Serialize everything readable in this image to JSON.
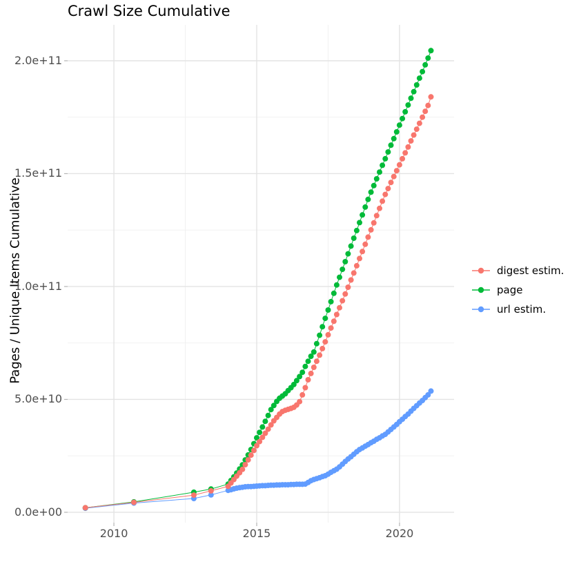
{
  "chart_data": {
    "type": "scatter",
    "title": "Crawl Size Cumulative",
    "xlabel": "",
    "ylabel": "Pages / Unique Items Cumulative",
    "grid": "on",
    "x_axis": {
      "tick_values": [
        2010,
        2015,
        2020
      ],
      "tick_labels": [
        "2010",
        "2015",
        "2020"
      ],
      "minor_values": [
        2012.5,
        2017.5
      ],
      "range": [
        2008.38,
        2021.91
      ]
    },
    "y_axis": {
      "unit": "1e9",
      "tick_values_e9": [
        0,
        50,
        100,
        150,
        200
      ],
      "tick_labels": [
        "0.0e+00",
        "5.0e+10",
        "1.0e+11",
        "1.5e+11",
        "2.0e+11"
      ],
      "minor_values_e9": [
        25,
        75,
        125,
        175
      ],
      "range_e9": [
        -4.6,
        215.9
      ]
    },
    "legend": {
      "position": "right",
      "items": [
        {
          "label": "digest estim.",
          "color": "#F8766D"
        },
        {
          "label": "page",
          "color": "#00BA38"
        },
        {
          "label": "url estim.",
          "color": "#619CFF"
        }
      ]
    },
    "draw_order": [
      2,
      1,
      0
    ],
    "point_radius": 4,
    "series": [
      {
        "id": "digest-estim",
        "name": "digest estim.",
        "color": "#F8766D",
        "points": [
          [
            2009.0,
            2.0
          ],
          [
            2010.7,
            4.4
          ],
          [
            2012.8,
            7.6
          ],
          [
            2013.4,
            9.5
          ],
          [
            2014.0,
            11.5
          ],
          [
            2014.1,
            13.0
          ],
          [
            2014.2,
            14.5
          ],
          [
            2014.3,
            16.0
          ],
          [
            2014.4,
            17.5
          ],
          [
            2014.5,
            19.0
          ],
          [
            2014.6,
            21.1
          ],
          [
            2014.7,
            23.2
          ],
          [
            2014.8,
            25.3
          ],
          [
            2014.9,
            27.4
          ],
          [
            2015.0,
            29.5
          ],
          [
            2015.1,
            31.3
          ],
          [
            2015.2,
            33.2
          ],
          [
            2015.3,
            35.0
          ],
          [
            2015.4,
            36.8
          ],
          [
            2015.5,
            38.7
          ],
          [
            2015.6,
            40.5
          ],
          [
            2015.7,
            42.0
          ],
          [
            2015.8,
            43.5
          ],
          [
            2015.9,
            44.6
          ],
          [
            2016.0,
            45.2
          ],
          [
            2016.1,
            45.6
          ],
          [
            2016.2,
            46.0
          ],
          [
            2016.3,
            46.5
          ],
          [
            2016.4,
            47.5
          ],
          [
            2016.5,
            49.0
          ],
          [
            2016.6,
            52.0
          ],
          [
            2016.7,
            55.2
          ],
          [
            2016.8,
            58.7
          ],
          [
            2016.9,
            61.5
          ],
          [
            2017.0,
            64.2
          ],
          [
            2017.1,
            66.9
          ],
          [
            2017.2,
            69.6
          ],
          [
            2017.3,
            72.5
          ],
          [
            2017.4,
            75.5
          ],
          [
            2017.5,
            78.6
          ],
          [
            2017.6,
            81.6
          ],
          [
            2017.7,
            84.6
          ],
          [
            2017.8,
            87.6
          ],
          [
            2017.9,
            90.6
          ],
          [
            2018.0,
            93.7
          ],
          [
            2018.1,
            96.7
          ],
          [
            2018.2,
            99.7
          ],
          [
            2018.3,
            102.9
          ],
          [
            2018.4,
            106.0
          ],
          [
            2018.5,
            109.2
          ],
          [
            2018.6,
            112.4
          ],
          [
            2018.7,
            115.5
          ],
          [
            2018.8,
            118.7
          ],
          [
            2018.9,
            121.9
          ],
          [
            2019.0,
            125.1
          ],
          [
            2019.1,
            128.2
          ],
          [
            2019.2,
            131.4
          ],
          [
            2019.3,
            134.6
          ],
          [
            2019.4,
            137.8
          ],
          [
            2019.5,
            140.8
          ],
          [
            2019.6,
            143.4
          ],
          [
            2019.7,
            146.1
          ],
          [
            2019.8,
            148.7
          ],
          [
            2019.9,
            151.3
          ],
          [
            2020.0,
            153.9
          ],
          [
            2020.1,
            156.6
          ],
          [
            2020.2,
            159.2
          ],
          [
            2020.3,
            161.8
          ],
          [
            2020.4,
            164.5
          ],
          [
            2020.5,
            167.1
          ],
          [
            2020.6,
            169.7
          ],
          [
            2020.7,
            172.3
          ],
          [
            2020.8,
            175.0
          ],
          [
            2020.9,
            177.6
          ],
          [
            2021.0,
            180.2
          ],
          [
            2021.1,
            184.0
          ]
        ]
      },
      {
        "id": "page",
        "name": "page",
        "color": "#00BA38",
        "points": [
          [
            2009.0,
            2.0
          ],
          [
            2010.7,
            4.6
          ],
          [
            2012.8,
            8.9
          ],
          [
            2013.4,
            10.3
          ],
          [
            2014.0,
            12.5
          ],
          [
            2014.1,
            14.1
          ],
          [
            2014.2,
            15.7
          ],
          [
            2014.3,
            17.4
          ],
          [
            2014.4,
            19.2
          ],
          [
            2014.5,
            21.0
          ],
          [
            2014.6,
            23.2
          ],
          [
            2014.7,
            25.4
          ],
          [
            2014.8,
            27.8
          ],
          [
            2014.9,
            30.4
          ],
          [
            2015.0,
            33.0
          ],
          [
            2015.1,
            35.4
          ],
          [
            2015.2,
            37.8
          ],
          [
            2015.3,
            40.3
          ],
          [
            2015.4,
            42.9
          ],
          [
            2015.5,
            45.5
          ],
          [
            2015.6,
            47.3
          ],
          [
            2015.7,
            49.1
          ],
          [
            2015.8,
            50.5
          ],
          [
            2015.9,
            51.5
          ],
          [
            2016.0,
            52.5
          ],
          [
            2016.1,
            53.9
          ],
          [
            2016.2,
            55.2
          ],
          [
            2016.3,
            56.6
          ],
          [
            2016.4,
            58.3
          ],
          [
            2016.5,
            60.1
          ],
          [
            2016.6,
            62.0
          ],
          [
            2016.7,
            64.6
          ],
          [
            2016.8,
            66.9
          ],
          [
            2016.9,
            69.1
          ],
          [
            2017.0,
            71.0
          ],
          [
            2017.1,
            74.7
          ],
          [
            2017.2,
            78.4
          ],
          [
            2017.3,
            82.2
          ],
          [
            2017.4,
            85.9
          ],
          [
            2017.5,
            89.6
          ],
          [
            2017.6,
            93.3
          ],
          [
            2017.7,
            97.0
          ],
          [
            2017.8,
            100.7
          ],
          [
            2017.9,
            104.1
          ],
          [
            2018.0,
            107.6
          ],
          [
            2018.1,
            111.0
          ],
          [
            2018.2,
            114.5
          ],
          [
            2018.3,
            117.9
          ],
          [
            2018.4,
            121.4
          ],
          [
            2018.5,
            124.8
          ],
          [
            2018.6,
            128.3
          ],
          [
            2018.7,
            131.7
          ],
          [
            2018.8,
            135.2
          ],
          [
            2018.9,
            138.6
          ],
          [
            2019.0,
            141.8
          ],
          [
            2019.1,
            144.7
          ],
          [
            2019.2,
            147.7
          ],
          [
            2019.3,
            150.7
          ],
          [
            2019.4,
            153.7
          ],
          [
            2019.5,
            156.6
          ],
          [
            2019.6,
            159.6
          ],
          [
            2019.7,
            162.6
          ],
          [
            2019.8,
            165.5
          ],
          [
            2019.9,
            168.5
          ],
          [
            2020.0,
            171.5
          ],
          [
            2020.1,
            174.4
          ],
          [
            2020.2,
            177.4
          ],
          [
            2020.3,
            180.4
          ],
          [
            2020.4,
            183.4
          ],
          [
            2020.5,
            186.3
          ],
          [
            2020.6,
            189.3
          ],
          [
            2020.7,
            192.3
          ],
          [
            2020.8,
            195.2
          ],
          [
            2020.9,
            198.2
          ],
          [
            2021.0,
            201.2
          ],
          [
            2021.1,
            204.5
          ]
        ]
      },
      {
        "id": "url-estim",
        "name": "url estim.",
        "color": "#619CFF",
        "points": [
          [
            2009.0,
            1.8
          ],
          [
            2010.7,
            4.1
          ],
          [
            2012.8,
            6.1
          ],
          [
            2013.4,
            7.7
          ],
          [
            2014.0,
            9.7
          ],
          [
            2014.1,
            10.0
          ],
          [
            2014.2,
            10.4
          ],
          [
            2014.3,
            10.7
          ],
          [
            2014.4,
            10.9
          ],
          [
            2014.5,
            11.1
          ],
          [
            2014.6,
            11.3
          ],
          [
            2014.7,
            11.4
          ],
          [
            2014.8,
            11.4
          ],
          [
            2014.9,
            11.5
          ],
          [
            2015.0,
            11.6
          ],
          [
            2015.1,
            11.7
          ],
          [
            2015.2,
            11.8
          ],
          [
            2015.3,
            11.8
          ],
          [
            2015.4,
            11.9
          ],
          [
            2015.5,
            12.0
          ],
          [
            2015.6,
            12.0
          ],
          [
            2015.7,
            12.1
          ],
          [
            2015.8,
            12.1
          ],
          [
            2015.9,
            12.2
          ],
          [
            2016.0,
            12.2
          ],
          [
            2016.1,
            12.2
          ],
          [
            2016.2,
            12.3
          ],
          [
            2016.3,
            12.3
          ],
          [
            2016.4,
            12.4
          ],
          [
            2016.5,
            12.4
          ],
          [
            2016.6,
            12.4
          ],
          [
            2016.7,
            12.5
          ],
          [
            2016.8,
            13.2
          ],
          [
            2016.9,
            14.0
          ],
          [
            2017.0,
            14.5
          ],
          [
            2017.1,
            14.9
          ],
          [
            2017.2,
            15.3
          ],
          [
            2017.3,
            15.8
          ],
          [
            2017.4,
            16.2
          ],
          [
            2017.5,
            16.9
          ],
          [
            2017.6,
            17.7
          ],
          [
            2017.7,
            18.4
          ],
          [
            2017.8,
            19.1
          ],
          [
            2017.9,
            20.1
          ],
          [
            2018.0,
            21.3
          ],
          [
            2018.1,
            22.5
          ],
          [
            2018.2,
            23.6
          ],
          [
            2018.3,
            24.6
          ],
          [
            2018.4,
            25.7
          ],
          [
            2018.5,
            26.8
          ],
          [
            2018.6,
            27.8
          ],
          [
            2018.7,
            28.5
          ],
          [
            2018.8,
            29.3
          ],
          [
            2018.9,
            30.0
          ],
          [
            2019.0,
            30.8
          ],
          [
            2019.1,
            31.5
          ],
          [
            2019.2,
            32.3
          ],
          [
            2019.3,
            33.0
          ],
          [
            2019.4,
            33.8
          ],
          [
            2019.5,
            34.5
          ],
          [
            2019.6,
            35.6
          ],
          [
            2019.7,
            36.7
          ],
          [
            2019.8,
            37.8
          ],
          [
            2019.9,
            38.9
          ],
          [
            2020.0,
            40.1
          ],
          [
            2020.1,
            41.2
          ],
          [
            2020.2,
            42.4
          ],
          [
            2020.3,
            43.5
          ],
          [
            2020.4,
            44.8
          ],
          [
            2020.5,
            46.0
          ],
          [
            2020.6,
            47.2
          ],
          [
            2020.7,
            48.4
          ],
          [
            2020.8,
            49.5
          ],
          [
            2020.9,
            50.8
          ],
          [
            2021.0,
            52.0
          ],
          [
            2021.1,
            53.7
          ]
        ]
      }
    ]
  }
}
